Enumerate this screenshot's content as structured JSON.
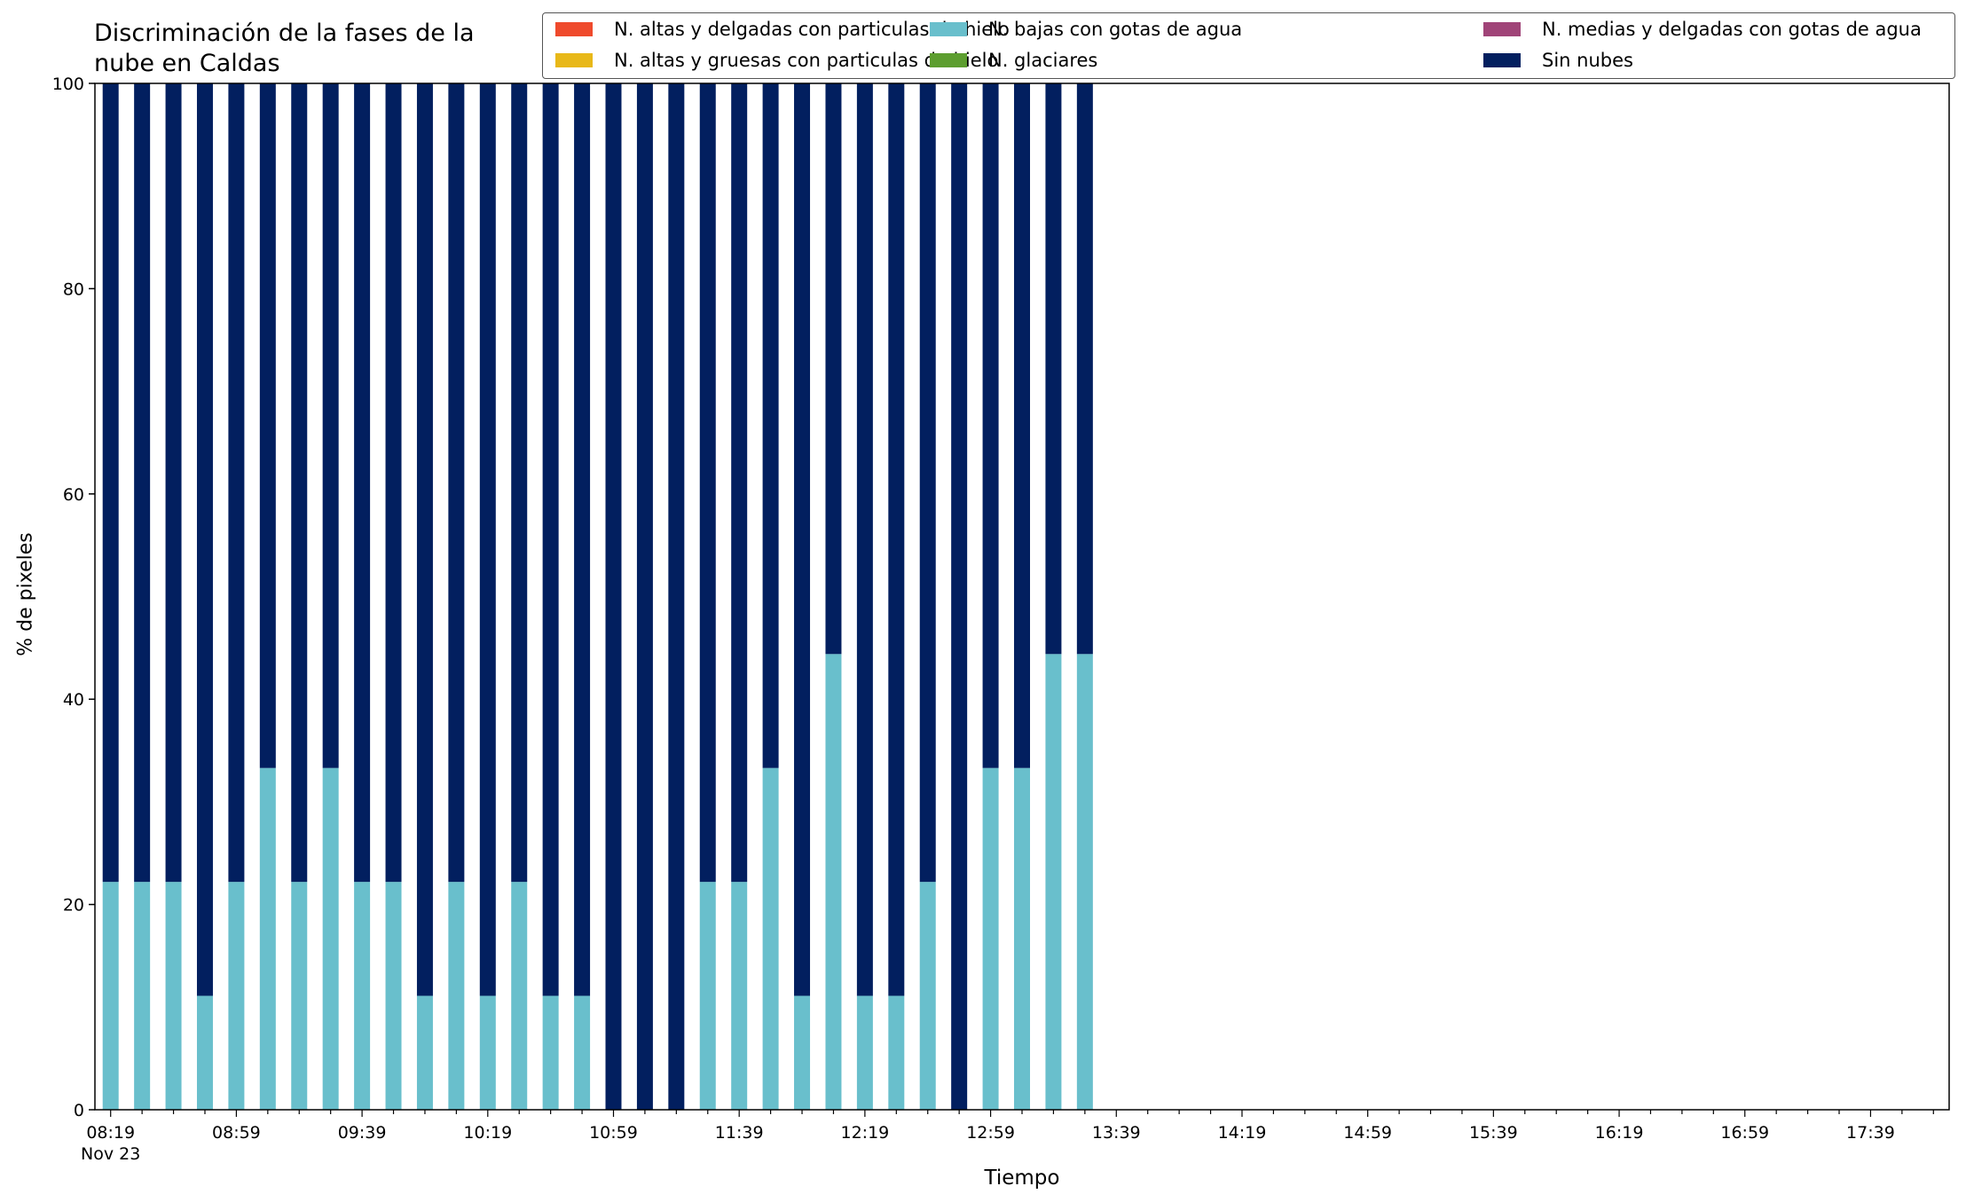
{
  "chart_data": {
    "type": "bar",
    "stacked": true,
    "title_lines": [
      "Discriminación de la fases de la",
      "nube en Caldas"
    ],
    "xlabel": "Tiempo",
    "ylabel": "% de pixeles",
    "ylim": [
      0,
      100
    ],
    "yticks": [
      0,
      20,
      40,
      60,
      80,
      100
    ],
    "x_axis_start": "08:19",
    "x_axis_date_label": "Nov 23",
    "x_interval_minutes": 10,
    "x_slot_count": 59,
    "xtick_labels": [
      "08:19",
      "08:59",
      "09:39",
      "10:19",
      "10:59",
      "11:39",
      "12:19",
      "12:59",
      "13:39",
      "14:19",
      "14:59",
      "15:39",
      "16:19",
      "16:59",
      "17:39"
    ],
    "categories": [
      "08:19",
      "08:29",
      "08:39",
      "08:49",
      "08:59",
      "09:09",
      "09:19",
      "09:29",
      "09:39",
      "09:49",
      "09:59",
      "10:09",
      "10:19",
      "10:29",
      "10:39",
      "10:49",
      "10:59",
      "11:09",
      "11:19",
      "11:29",
      "11:39",
      "11:49",
      "11:59",
      "12:09",
      "12:19",
      "12:29",
      "12:39",
      "12:49",
      "12:59",
      "13:09",
      "13:19",
      "13:29"
    ],
    "series": [
      {
        "name": "N. altas y delgadas con particulas de hielo",
        "color": "#ef4a2c",
        "values": [
          0,
          0,
          0,
          0,
          0,
          0,
          0,
          0,
          0,
          0,
          0,
          0,
          0,
          0,
          0,
          0,
          0,
          0,
          0,
          0,
          0,
          0,
          0,
          0,
          0,
          0,
          0,
          0,
          0,
          0,
          0,
          0
        ]
      },
      {
        "name": "N. altas y gruesas con particulas de hielo",
        "color": "#e8b818",
        "values": [
          0,
          0,
          0,
          0,
          0,
          0,
          0,
          0,
          0,
          0,
          0,
          0,
          0,
          0,
          0,
          0,
          0,
          0,
          0,
          0,
          0,
          0,
          0,
          0,
          0,
          0,
          0,
          0,
          0,
          0,
          0,
          0
        ]
      },
      {
        "name": "N. bajas con gotas de agua",
        "color": "#69bfcc",
        "values": [
          22.2,
          22.2,
          22.2,
          11.1,
          22.2,
          33.3,
          22.2,
          33.3,
          22.2,
          22.2,
          11.1,
          22.2,
          11.1,
          22.2,
          11.1,
          11.1,
          0,
          0,
          0,
          22.2,
          22.2,
          33.3,
          11.1,
          44.4,
          11.1,
          11.1,
          22.2,
          0,
          33.3,
          33.3,
          44.4,
          44.4
        ]
      },
      {
        "name": "N. glaciares",
        "color": "#5d9e2f",
        "values": [
          0,
          0,
          0,
          0,
          0,
          0,
          0,
          0,
          0,
          0,
          0,
          0,
          0,
          0,
          0,
          0,
          0,
          0,
          0,
          0,
          0,
          0,
          0,
          0,
          0,
          0,
          0,
          0,
          0,
          0,
          0,
          0
        ]
      },
      {
        "name": "N. medias y delgadas con gotas de agua",
        "color": "#a04478",
        "values": [
          0,
          0,
          0,
          0,
          0,
          0,
          0,
          0,
          0,
          0,
          0,
          0,
          0,
          0,
          0,
          0,
          0,
          0,
          0,
          0,
          0,
          0,
          0,
          0,
          0,
          0,
          0,
          0,
          0,
          0,
          0,
          0
        ]
      },
      {
        "name": "Sin nubes",
        "color": "#021f5f",
        "values": [
          77.8,
          77.8,
          77.8,
          88.9,
          77.8,
          66.7,
          77.8,
          66.7,
          77.8,
          77.8,
          88.9,
          77.8,
          88.9,
          77.8,
          88.9,
          88.9,
          100,
          100,
          100,
          77.8,
          77.8,
          66.7,
          88.9,
          55.6,
          88.9,
          88.9,
          77.8,
          100,
          66.7,
          66.7,
          55.6,
          55.6
        ]
      }
    ],
    "legend": {
      "placement": "top-right",
      "columns": 3
    },
    "grid": false
  }
}
